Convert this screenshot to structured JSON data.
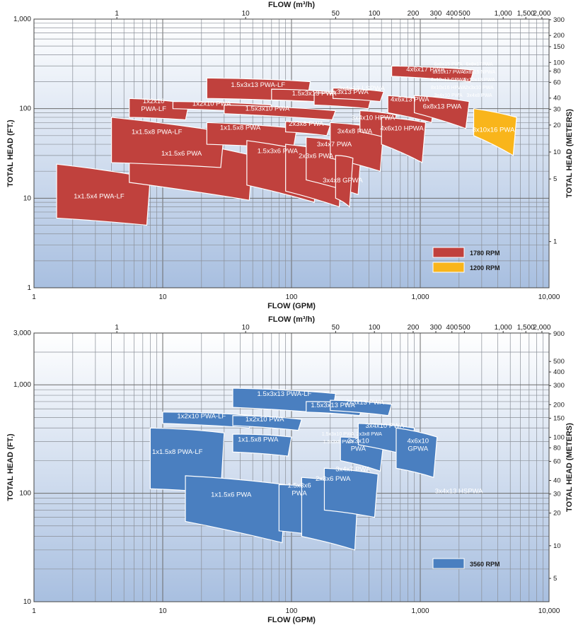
{
  "chart_data": [
    {
      "type": "area",
      "subtype": "pump-coverage-regions",
      "x_label": "FLOW (GPM)",
      "x2_label": "FLOW (m³/h)",
      "y_label": "TOTAL HEAD (FT.)",
      "y2_label": "TOTAL HEAD (METERS)",
      "x_scale": "log",
      "y_scale": "log",
      "xlim": [
        1,
        10000
      ],
      "ylim": [
        1,
        1000
      ],
      "grid": true,
      "legend_position": "bottom-right",
      "x_ticks": [
        "1",
        "10",
        "100",
        "1,000",
        "10,000"
      ],
      "y_ticks": [
        "1",
        "10",
        "100",
        "1,000"
      ],
      "x2_ticks": [
        {
          "label": "1",
          "value": 1
        },
        {
          "label": "10",
          "value": 10
        },
        {
          "label": "50",
          "value": 50
        },
        {
          "label": "100",
          "value": 100
        },
        {
          "label": "200",
          "value": 200
        },
        {
          "label": "300",
          "value": 300
        },
        {
          "label": "400",
          "value": 400
        },
        {
          "label": "500",
          "value": 500
        },
        {
          "label": "1,000",
          "value": 1000
        },
        {
          "label": "1,500",
          "value": 1500
        },
        {
          "label": "2,000",
          "value": 2000
        }
      ],
      "y2_ticks": [
        {
          "label": "1",
          "value": 1
        },
        {
          "label": "5",
          "value": 5
        },
        {
          "label": "10",
          "value": 10
        },
        {
          "label": "20",
          "value": 20
        },
        {
          "label": "30",
          "value": 30
        },
        {
          "label": "40",
          "value": 40
        },
        {
          "label": "60",
          "value": 60
        },
        {
          "label": "80",
          "value": 80
        },
        {
          "label": "100",
          "value": 100
        },
        {
          "label": "150",
          "value": 150
        },
        {
          "label": "200",
          "value": 200
        },
        {
          "label": "300",
          "value": 300
        }
      ],
      "series": [
        {
          "name": "1780 RPM",
          "color": "#c0413d"
        },
        {
          "name": "1200 RPM",
          "color": "#f9b51b"
        }
      ],
      "regions": [
        {
          "label": "1x1.5x4 PWA-LF",
          "series": 0,
          "x_range": [
            1.5,
            8
          ],
          "head_left": [
            24,
            6
          ],
          "head_right": [
            17,
            5
          ],
          "label_x": 3.2,
          "label_y": 10
        },
        {
          "label": "1x1.5x6 PWA",
          "series": 0,
          "x_range": [
            5.5,
            50
          ],
          "head_left": [
            57,
            15
          ],
          "head_right": [
            30,
            9.5
          ],
          "label_x": 14,
          "label_y": 30
        },
        {
          "label": "1x1.5x8 PWA-LF",
          "series": 0,
          "x_range": [
            4,
            30
          ],
          "head_left": [
            80,
            25
          ],
          "head_right": [
            55,
            22
          ],
          "label_x": 9,
          "label_y": 52
        },
        {
          "label": "1x2x10\nPWA-LF",
          "series": 0,
          "x_range": [
            5.5,
            16
          ],
          "head_left": [
            130,
            80
          ],
          "head_right": [
            115,
            75
          ],
          "label_x": 8.5,
          "label_y": 105
        },
        {
          "label": "1x2x10 PWA",
          "series": 0,
          "x_range": [
            12,
            70
          ],
          "head_left": [
            120,
            100
          ],
          "head_right": [
            110,
            90
          ],
          "label_x": 24,
          "label_y": 108
        },
        {
          "label": "1.5x3x13 PWA-LF",
          "series": 0,
          "x_range": [
            22,
            140
          ],
          "head_left": [
            220,
            130
          ],
          "head_right": [
            200,
            120
          ],
          "label_x": 55,
          "label_y": 175
        },
        {
          "label": "1.5x3x10 PWA",
          "series": 0,
          "x_range": [
            30,
            220
          ],
          "head_left": [
            110,
            88
          ],
          "head_right": [
            95,
            75
          ],
          "label_x": 65,
          "label_y": 95
        },
        {
          "label": "1x1.5x8 PWA",
          "series": 0,
          "x_range": [
            22,
            110
          ],
          "head_left": [
            70,
            40
          ],
          "head_right": [
            60,
            36
          ],
          "label_x": 40,
          "label_y": 58
        },
        {
          "label": "2x3x8 PWA",
          "series": 0,
          "x_range": [
            90,
            200
          ],
          "head_left": [
            72,
            55
          ],
          "head_right": [
            65,
            50
          ],
          "label_x": 130,
          "label_y": 64
        },
        {
          "label": "1.5x3x6 PWA",
          "series": 0,
          "x_range": [
            45,
            160
          ],
          "head_left": [
            44,
            14
          ],
          "head_right": [
            32,
            9
          ],
          "label_x": 78,
          "label_y": 32
        },
        {
          "label": "2x3x6 PWA",
          "series": 0,
          "x_range": [
            90,
            250
          ],
          "head_left": [
            40,
            12
          ],
          "head_right": [
            32,
            8
          ],
          "label_x": 155,
          "label_y": 28
        },
        {
          "label": "3x4x7 PWA",
          "series": 0,
          "x_range": [
            130,
            350
          ],
          "head_left": [
            48,
            16
          ],
          "head_right": [
            40,
            11
          ],
          "label_x": 215,
          "label_y": 38
        },
        {
          "label": "3x4x8 PWA",
          "series": 0,
          "x_range": [
            200,
            520
          ],
          "head_left": [
            70,
            28
          ],
          "head_right": [
            60,
            20
          ],
          "label_x": 310,
          "label_y": 53
        },
        {
          "label": "3x4x8 GPWA",
          "series": 0,
          "x_range": [
            220,
            300
          ],
          "head_left": [
            30,
            10
          ],
          "head_right": [
            28,
            8
          ],
          "label_x": 250,
          "label_y": 15
        },
        {
          "label": "1.5x3x13 PWA",
          "series": 0,
          "x_range": [
            70,
            260
          ],
          "head_left": [
            165,
            125
          ],
          "head_right": [
            150,
            115
          ],
          "label_x": 150,
          "label_y": 140
        },
        {
          "label": "2x3x13 PWA",
          "series": 0,
          "x_range": [
            150,
            420
          ],
          "head_left": [
            150,
            110
          ],
          "head_right": [
            140,
            100
          ],
          "label_x": 280,
          "label_y": 145
        },
        {
          "label": "3x4x13 LSPWA",
          "series": 0,
          "x_range": [
            210,
            520
          ],
          "head_left": [
            170,
            130
          ],
          "head_right": [
            155,
            120
          ],
          "label_x": 350,
          "label_y": 160
        },
        {
          "label": "3x4x10 HPWA",
          "series": 0,
          "x_range": [
            340,
            650
          ],
          "head_left": [
            95,
            55
          ],
          "head_right": [
            85,
            45
          ],
          "label_x": 430,
          "label_y": 75
        },
        {
          "label": "4x6x10 HPWA",
          "series": 0,
          "x_range": [
            500,
            1100
          ],
          "head_left": [
            80,
            40
          ],
          "head_right": [
            70,
            25
          ],
          "label_x": 720,
          "label_y": 57
        },
        {
          "label": "4x6x13 PWA",
          "series": 0,
          "x_range": [
            560,
            1300
          ],
          "head_left": [
            140,
            90
          ],
          "head_right": [
            120,
            70
          ],
          "label_x": 830,
          "label_y": 120
        },
        {
          "label": "6x8x13 PWA",
          "series": 0,
          "x_range": [
            900,
            2400
          ],
          "head_left": [
            140,
            90
          ],
          "head_right": [
            120,
            60
          ],
          "label_x": 1480,
          "label_y": 100
        },
        {
          "label": "4x6x17 PWA",
          "series": 0,
          "x_range": [
            600,
            2600
          ],
          "head_left": [
            300,
            230
          ],
          "head_right": [
            270,
            200
          ],
          "label_x": 1100,
          "label_y": 260
        },
        {
          "label": "8x10x16 PWA",
          "series": 1,
          "x_range": [
            2600,
            5600
          ],
          "head_left": [
            100,
            50
          ],
          "head_right": [
            80,
            30
          ],
          "label_x": 3700,
          "label_y": 55
        }
      ],
      "small_region_labels": [
        "6x8x15\nPWA",
        "6x8x17PWA",
        "8x10x17\nPWA",
        "6x8x15 NPWA",
        "6x10x13 GPWA",
        "8x10x13 PWA",
        "8x10x16 HPWA",
        "2x3x10 PWA",
        "3x4x10 PWA",
        "3x4x8 PWA"
      ]
    },
    {
      "type": "area",
      "subtype": "pump-coverage-regions",
      "x_label": "FLOW (GPM)",
      "x2_label": "FLOW (m³/h)",
      "y_label": "TOTAL HEAD (FT.)",
      "y2_label": "TOTAL HEAD (METERS)",
      "x_scale": "log",
      "y_scale": "log",
      "xlim": [
        1,
        10000
      ],
      "ylim": [
        10,
        3000
      ],
      "grid": true,
      "legend_position": "bottom-right",
      "x_ticks": [
        "1",
        "10",
        "100",
        "1,000",
        "10,000"
      ],
      "y_ticks": [
        "10",
        "100",
        "1,000",
        "3,000"
      ],
      "x2_ticks": [
        {
          "label": "1",
          "value": 1
        },
        {
          "label": "10",
          "value": 10
        },
        {
          "label": "50",
          "value": 50
        },
        {
          "label": "100",
          "value": 100
        },
        {
          "label": "200",
          "value": 200
        },
        {
          "label": "300",
          "value": 300
        },
        {
          "label": "400",
          "value": 400
        },
        {
          "label": "500",
          "value": 500
        },
        {
          "label": "1,000",
          "value": 1000
        },
        {
          "label": "1,500",
          "value": 1500
        },
        {
          "label": "2,000",
          "value": 2000
        }
      ],
      "y2_ticks": [
        {
          "label": "1",
          "value": 1
        },
        {
          "label": "5",
          "value": 5
        },
        {
          "label": "10",
          "value": 10
        },
        {
          "label": "20",
          "value": 20
        },
        {
          "label": "30",
          "value": 30
        },
        {
          "label": "40",
          "value": 40
        },
        {
          "label": "60",
          "value": 60
        },
        {
          "label": "80",
          "value": 80
        },
        {
          "label": "100",
          "value": 100
        },
        {
          "label": "150",
          "value": 150
        },
        {
          "label": "200",
          "value": 200
        },
        {
          "label": "300",
          "value": 300
        },
        {
          "label": "400",
          "value": 400
        },
        {
          "label": "500",
          "value": 500
        },
        {
          "label": "900",
          "value": 900
        }
      ],
      "series": [
        {
          "name": "3560 RPM",
          "color": "#4a7fc0"
        }
      ],
      "regions": [
        {
          "label": "1x1.5x8 PWA-LF",
          "series": 0,
          "x_range": [
            8,
            30
          ],
          "head_left": [
            400,
            110
          ],
          "head_right": [
            360,
            100
          ],
          "label_x": 13,
          "label_y": 230
        },
        {
          "label": "1x2x10 PWA-LF",
          "series": 0,
          "x_range": [
            10,
            50
          ],
          "head_left": [
            560,
            440
          ],
          "head_right": [
            520,
            400
          ],
          "label_x": 20,
          "label_y": 490
        },
        {
          "label": "1x2x10 PWA",
          "series": 0,
          "x_range": [
            35,
            120
          ],
          "head_left": [
            520,
            420
          ],
          "head_right": [
            480,
            380
          ],
          "label_x": 62,
          "label_y": 460
        },
        {
          "label": "1.5x3x13 PWA-LF",
          "series": 0,
          "x_range": [
            35,
            220
          ],
          "head_left": [
            930,
            620
          ],
          "head_right": [
            830,
            540
          ],
          "label_x": 88,
          "label_y": 790
        },
        {
          "label": "1.5x3x13 PWA",
          "series": 0,
          "x_range": [
            130,
            360
          ],
          "head_left": [
            700,
            560
          ],
          "head_right": [
            660,
            520
          ],
          "label_x": 210,
          "label_y": 620
        },
        {
          "label": "2x3x13 PWA",
          "series": 0,
          "x_range": [
            200,
            600
          ],
          "head_left": [
            720,
            580
          ],
          "head_right": [
            660,
            520
          ],
          "label_x": 370,
          "label_y": 660
        },
        {
          "label": "1x1.5x8 PWA",
          "series": 0,
          "x_range": [
            35,
            100
          ],
          "head_left": [
            350,
            240
          ],
          "head_right": [
            330,
            220
          ],
          "label_x": 55,
          "label_y": 300
        },
        {
          "label": "1x1.5x6 PWA",
          "series": 0,
          "x_range": [
            15,
            90
          ],
          "head_left": [
            145,
            55
          ],
          "head_right": [
            120,
            35
          ],
          "label_x": 34,
          "label_y": 93
        },
        {
          "label": "1.5x3x6\nPWA",
          "series": 0,
          "x_range": [
            80,
            180
          ],
          "head_left": [
            120,
            45
          ],
          "head_right": [
            110,
            40
          ],
          "label_x": 115,
          "label_y": 105
        },
        {
          "label": "2x3x6 PWA",
          "series": 0,
          "x_range": [
            120,
            330
          ],
          "head_left": [
            140,
            40
          ],
          "head_right": [
            120,
            30
          ],
          "label_x": 210,
          "label_y": 130
        },
        {
          "label": "3x4x7 PWA",
          "series": 0,
          "x_range": [
            180,
            470
          ],
          "head_left": [
            170,
            70
          ],
          "head_right": [
            150,
            60
          ],
          "label_x": 300,
          "label_y": 160
        },
        {
          "label": "2x3x10\nPWA",
          "series": 0,
          "x_range": [
            240,
            520
          ],
          "head_left": [
            330,
            200
          ],
          "head_right": [
            300,
            160
          ],
          "label_x": 330,
          "label_y": 270
        },
        {
          "label": "3x4x10 PWA",
          "series": 0,
          "x_range": [
            330,
            900
          ],
          "head_left": [
            440,
            280
          ],
          "head_right": [
            400,
            220
          ],
          "label_x": 530,
          "label_y": 400
        },
        {
          "label": "4x6x10\nGPWA",
          "series": 0,
          "x_range": [
            650,
            1350
          ],
          "head_left": [
            400,
            170
          ],
          "head_right": [
            330,
            140
          ],
          "label_x": 960,
          "label_y": 270
        }
      ],
      "small_region_labels": [
        "1.5x3x10 PWA",
        "2x3x8 PWA",
        "1.5x3x8 PWA"
      ],
      "annotations": [
        {
          "text": "3x4x13 HSPWA",
          "x": 1300,
          "y": 100
        }
      ]
    }
  ]
}
